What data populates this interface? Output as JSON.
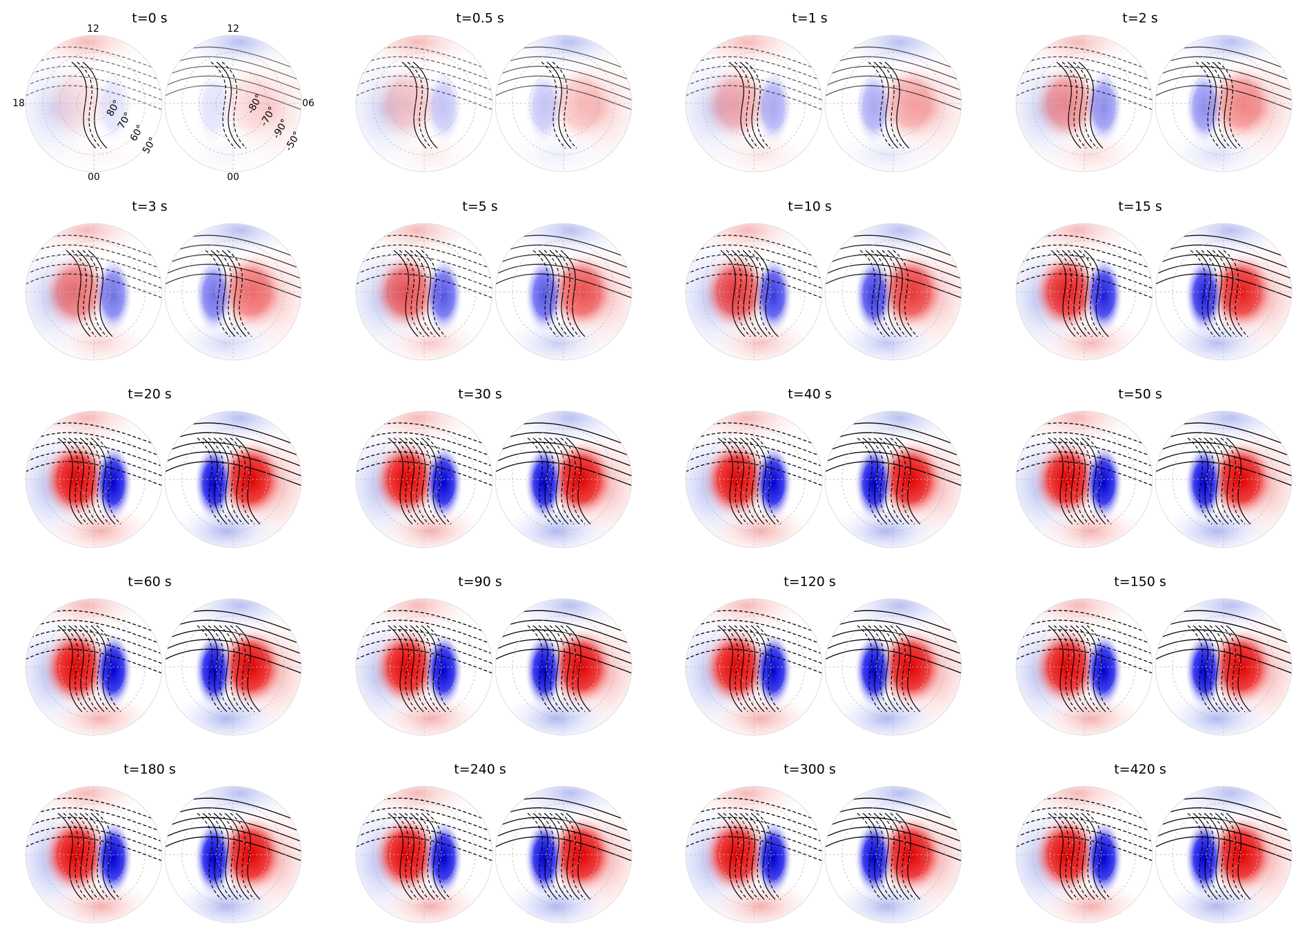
{
  "panels": [
    {
      "title": "t=0 s"
    },
    {
      "title": "t=0.5 s"
    },
    {
      "title": "t=1 s"
    },
    {
      "title": "t=2 s"
    },
    {
      "title": "t=3 s"
    },
    {
      "title": "t=5 s"
    },
    {
      "title": "t=10 s"
    },
    {
      "title": "t=15 s"
    },
    {
      "title": "t=20 s"
    },
    {
      "title": "t=30 s"
    },
    {
      "title": "t=40 s"
    },
    {
      "title": "t=50 s"
    },
    {
      "title": "t=60 s"
    },
    {
      "title": "t=90 s"
    },
    {
      "title": "t=120 s"
    },
    {
      "title": "t=150 s"
    },
    {
      "title": "t=180 s"
    },
    {
      "title": "t=240 s"
    },
    {
      "title": "t=300 s"
    },
    {
      "title": "t=420 s"
    }
  ],
  "labels": {
    "north": {
      "top": "12",
      "left": "18",
      "bottom": "00",
      "lat": [
        "80°",
        "70°",
        "60°",
        "50°"
      ]
    },
    "south": {
      "top": "12",
      "right": "06",
      "bottom": "00",
      "lat": [
        "-80°",
        "-70°",
        "-90°",
        "-50°"
      ]
    }
  }
}
